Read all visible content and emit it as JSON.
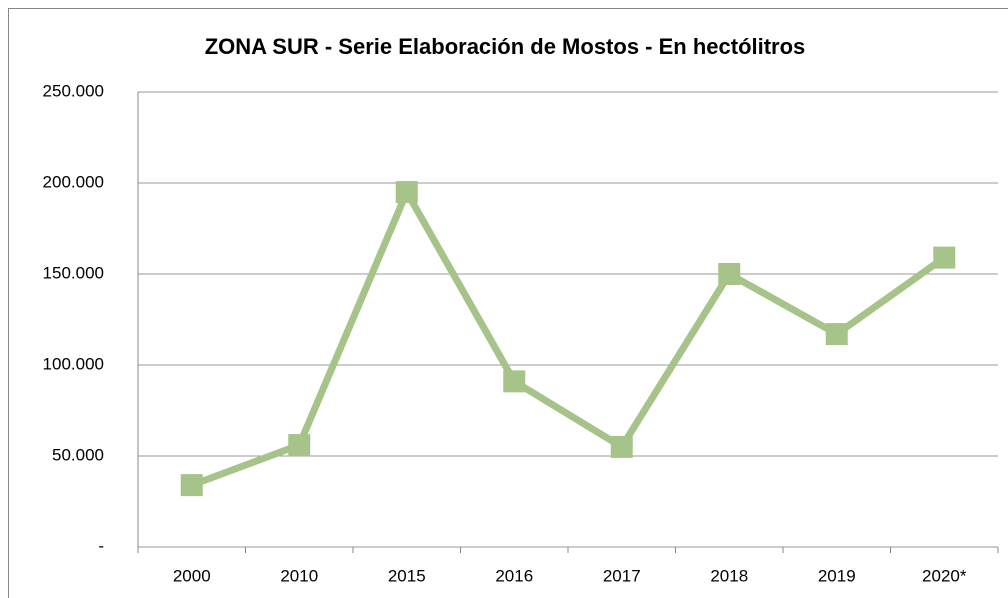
{
  "chart_data": {
    "type": "line",
    "title": "ZONA SUR - Serie Elaboración de Mostos - En hectólitros",
    "categories": [
      "2000",
      "2010",
      "2015",
      "2016",
      "2017",
      "2018",
      "2019",
      "2020*"
    ],
    "values": [
      34000,
      56000,
      195000,
      91000,
      55000,
      150000,
      117000,
      159000
    ],
    "color": "#a6c48a",
    "ylim": [
      0,
      250000
    ],
    "yticks": [
      {
        "value": 0,
        "label": "-"
      },
      {
        "value": 50000,
        "label": "50.000"
      },
      {
        "value": 100000,
        "label": "100.000"
      },
      {
        "value": 150000,
        "label": "150.000"
      },
      {
        "value": 200000,
        "label": "200.000"
      },
      {
        "value": 250000,
        "label": "250.000"
      }
    ],
    "grid": true
  }
}
